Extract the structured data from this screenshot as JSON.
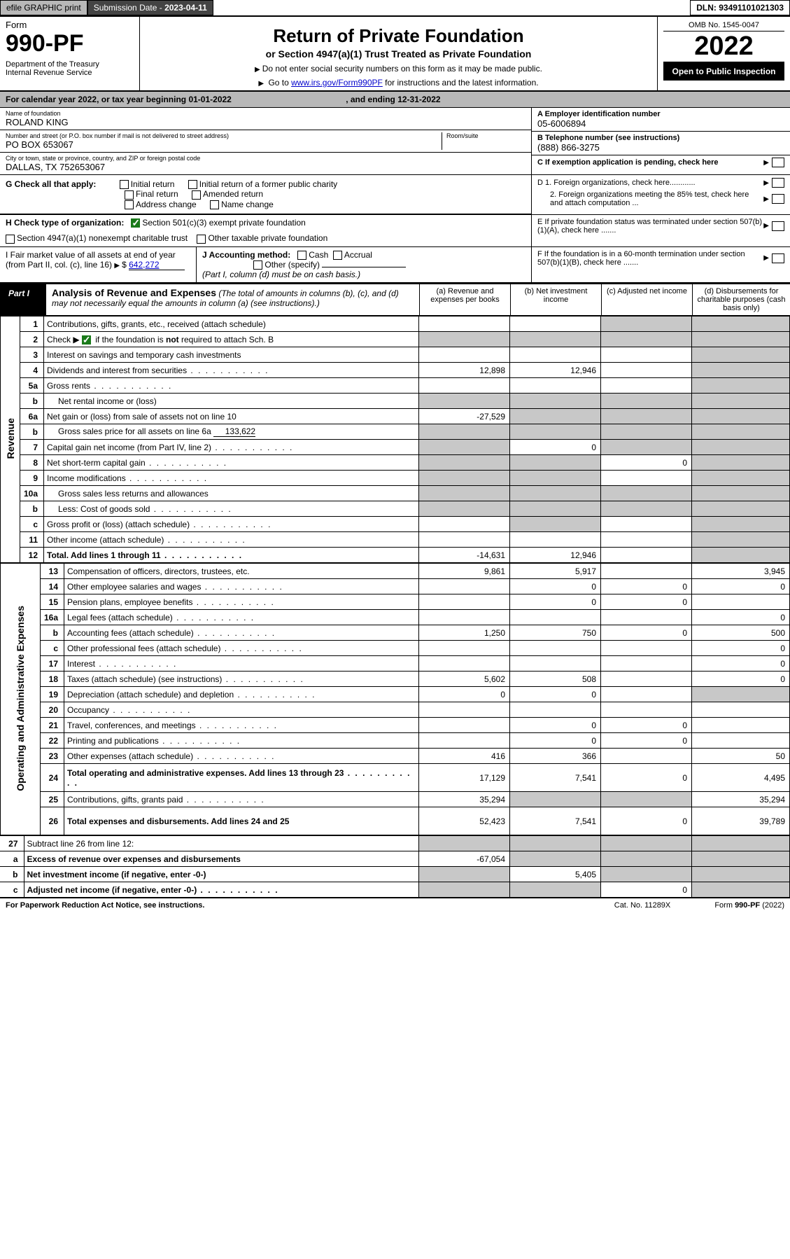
{
  "topbar": {
    "efile": "efile GRAPHIC print",
    "subdate_label": "Submission Date - ",
    "subdate": "2023-04-11",
    "dln_label": "DLN: ",
    "dln": "93491101021303"
  },
  "header": {
    "form_label": "Form",
    "form_no": "990-PF",
    "dept": "Department of the Treasury\nInternal Revenue Service",
    "title": "Return of Private Foundation",
    "subtitle": "or Section 4947(a)(1) Trust Treated as Private Foundation",
    "note1": "Do not enter social security numbers on this form as it may be made public.",
    "note2_pre": "Go to ",
    "note2_link": "www.irs.gov/Form990PF",
    "note2_post": " for instructions and the latest information.",
    "omb": "OMB No. 1545-0047",
    "year": "2022",
    "open": "Open to Public Inspection"
  },
  "calyear": {
    "pre": "For calendar year 2022, or tax year beginning ",
    "begin": "01-01-2022",
    "mid": ", and ending ",
    "end": "12-31-2022"
  },
  "info": {
    "name_lbl": "Name of foundation",
    "name": "ROLAND KING",
    "addr_lbl": "Number and street (or P.O. box number if mail is not delivered to street address)",
    "addr": "PO BOX 653067",
    "room_lbl": "Room/suite",
    "city_lbl": "City or town, state or province, country, and ZIP or foreign postal code",
    "city": "DALLAS, TX  752653067",
    "a_lbl": "A Employer identification number",
    "a_val": "05-6006894",
    "b_lbl": "B Telephone number (see instructions)",
    "b_val": "(888) 866-3275",
    "c_lbl": "C If exemption application is pending, check here",
    "d1": "D 1. Foreign organizations, check here............",
    "d2": "2. Foreign organizations meeting the 85% test, check here and attach computation ...",
    "e_lbl": "E  If private foundation status was terminated under section 507(b)(1)(A), check here .......",
    "f_lbl": "F  If the foundation is in a 60-month termination under section 507(b)(1)(B), check here ......."
  },
  "g": {
    "label": "G Check all that apply:",
    "opts": [
      "Initial return",
      "Initial return of a former public charity",
      "Final return",
      "Amended return",
      "Address change",
      "Name change"
    ]
  },
  "h": {
    "label": "H Check type of organization:",
    "o1": "Section 501(c)(3) exempt private foundation",
    "o2": "Section 4947(a)(1) nonexempt charitable trust",
    "o3": "Other taxable private foundation"
  },
  "i": {
    "label": "I Fair market value of all assets at end of year (from Part II, col. (c), line 16)",
    "val": "642,272"
  },
  "j": {
    "label": "J Accounting method:",
    "o1": "Cash",
    "o2": "Accrual",
    "o3": "Other (specify)",
    "note": "(Part I, column (d) must be on cash basis.)"
  },
  "part1": {
    "label": "Part I",
    "title": "Analysis of Revenue and Expenses",
    "title_note": "(The total of amounts in columns (b), (c), and (d) may not necessarily equal the amounts in column (a) (see instructions).)",
    "cols": {
      "a": "(a)  Revenue and expenses per books",
      "b": "(b)  Net investment income",
      "c": "(c)  Adjusted net income",
      "d": "(d)  Disbursements for charitable purposes (cash basis only)"
    }
  },
  "side": {
    "revenue": "Revenue",
    "expenses": "Operating and Administrative Expenses"
  },
  "rows": [
    {
      "n": "1",
      "d": "Contributions, gifts, grants, etc., received (attach schedule)",
      "a": "",
      "b": "",
      "c": null,
      "dd": null,
      "grey_c": true,
      "grey_d": true
    },
    {
      "n": "2",
      "d": "Check ▶ ☑ if the foundation is not required to attach Sch. B",
      "a": null,
      "b": null,
      "c": null,
      "dd": null,
      "grey_a": true,
      "grey_b": true,
      "grey_c": true,
      "grey_d": true,
      "bold_not": true
    },
    {
      "n": "3",
      "d": "Interest on savings and temporary cash investments",
      "a": "",
      "b": "",
      "c": "",
      "dd": null,
      "grey_d": true
    },
    {
      "n": "4",
      "d": "Dividends and interest from securities",
      "a": "12,898",
      "b": "12,946",
      "c": "",
      "dd": null,
      "grey_d": true,
      "dots": true
    },
    {
      "n": "5a",
      "d": "Gross rents",
      "a": "",
      "b": "",
      "c": "",
      "dd": null,
      "grey_d": true,
      "dots": true
    },
    {
      "n": "b",
      "d": "Net rental income or (loss)",
      "a": null,
      "b": null,
      "c": null,
      "dd": null,
      "grey_a": true,
      "grey_b": true,
      "grey_c": true,
      "grey_d": true,
      "inset": true
    },
    {
      "n": "6a",
      "d": "Net gain or (loss) from sale of assets not on line 10",
      "a": "-27,529",
      "b": null,
      "c": null,
      "dd": null,
      "grey_b": true,
      "grey_c": true,
      "grey_d": true
    },
    {
      "n": "b",
      "d": "Gross sales price for all assets on line 6a",
      "a": null,
      "b": null,
      "c": null,
      "dd": null,
      "grey_a": true,
      "grey_b": true,
      "grey_c": true,
      "grey_d": true,
      "inset": true,
      "inline_val": "133,622"
    },
    {
      "n": "7",
      "d": "Capital gain net income (from Part IV, line 2)",
      "a": null,
      "b": "0",
      "c": null,
      "dd": null,
      "grey_a": true,
      "grey_c": true,
      "grey_d": true,
      "dots": true
    },
    {
      "n": "8",
      "d": "Net short-term capital gain",
      "a": null,
      "b": null,
      "c": "0",
      "dd": null,
      "grey_a": true,
      "grey_b": true,
      "grey_d": true,
      "dots": true
    },
    {
      "n": "9",
      "d": "Income modifications",
      "a": null,
      "b": null,
      "c": "",
      "dd": null,
      "grey_a": true,
      "grey_b": true,
      "grey_d": true,
      "dots": true
    },
    {
      "n": "10a",
      "d": "Gross sales less returns and allowances",
      "a": null,
      "b": null,
      "c": null,
      "dd": null,
      "grey_a": true,
      "grey_b": true,
      "grey_c": true,
      "grey_d": true,
      "inset": true
    },
    {
      "n": "b",
      "d": "Less: Cost of goods sold",
      "a": null,
      "b": null,
      "c": null,
      "dd": null,
      "grey_a": true,
      "grey_b": true,
      "grey_c": true,
      "grey_d": true,
      "inset": true,
      "dots": true
    },
    {
      "n": "c",
      "d": "Gross profit or (loss) (attach schedule)",
      "a": "",
      "b": null,
      "c": "",
      "dd": null,
      "grey_b": true,
      "grey_d": true,
      "dots": true
    },
    {
      "n": "11",
      "d": "Other income (attach schedule)",
      "a": "",
      "b": "",
      "c": "",
      "dd": null,
      "grey_d": true,
      "dots": true
    },
    {
      "n": "12",
      "d": "Total. Add lines 1 through 11",
      "a": "-14,631",
      "b": "12,946",
      "c": "",
      "dd": null,
      "grey_d": true,
      "bold": true,
      "dots": true
    }
  ],
  "exp_rows": [
    {
      "n": "13",
      "d": "Compensation of officers, directors, trustees, etc.",
      "a": "9,861",
      "b": "5,917",
      "c": "",
      "dd": "3,945"
    },
    {
      "n": "14",
      "d": "Other employee salaries and wages",
      "a": "",
      "b": "0",
      "c": "0",
      "dd": "0",
      "dots": true
    },
    {
      "n": "15",
      "d": "Pension plans, employee benefits",
      "a": "",
      "b": "0",
      "c": "0",
      "dd": "",
      "dots": true
    },
    {
      "n": "16a",
      "d": "Legal fees (attach schedule)",
      "a": "",
      "b": "",
      "c": "",
      "dd": "0",
      "dots": true
    },
    {
      "n": "b",
      "d": "Accounting fees (attach schedule)",
      "a": "1,250",
      "b": "750",
      "c": "0",
      "dd": "500",
      "dots": true
    },
    {
      "n": "c",
      "d": "Other professional fees (attach schedule)",
      "a": "",
      "b": "",
      "c": "",
      "dd": "0",
      "dots": true
    },
    {
      "n": "17",
      "d": "Interest",
      "a": "",
      "b": "",
      "c": "",
      "dd": "0",
      "dots": true
    },
    {
      "n": "18",
      "d": "Taxes (attach schedule) (see instructions)",
      "a": "5,602",
      "b": "508",
      "c": "",
      "dd": "0",
      "dots": true
    },
    {
      "n": "19",
      "d": "Depreciation (attach schedule) and depletion",
      "a": "0",
      "b": "0",
      "c": "",
      "dd": null,
      "grey_d": true,
      "dots": true
    },
    {
      "n": "20",
      "d": "Occupancy",
      "a": "",
      "b": "",
      "c": "",
      "dd": "",
      "dots": true
    },
    {
      "n": "21",
      "d": "Travel, conferences, and meetings",
      "a": "",
      "b": "0",
      "c": "0",
      "dd": "",
      "dots": true
    },
    {
      "n": "22",
      "d": "Printing and publications",
      "a": "",
      "b": "0",
      "c": "0",
      "dd": "",
      "dots": true
    },
    {
      "n": "23",
      "d": "Other expenses (attach schedule)",
      "a": "416",
      "b": "366",
      "c": "",
      "dd": "50",
      "dots": true
    },
    {
      "n": "24",
      "d": "Total operating and administrative expenses. Add lines 13 through 23",
      "a": "17,129",
      "b": "7,541",
      "c": "0",
      "dd": "4,495",
      "bold": true,
      "dots": true,
      "twoline": true
    },
    {
      "n": "25",
      "d": "Contributions, gifts, grants paid",
      "a": "35,294",
      "b": null,
      "c": null,
      "dd": "35,294",
      "grey_b": true,
      "grey_c": true,
      "dots": true
    },
    {
      "n": "26",
      "d": "Total expenses and disbursements. Add lines 24 and 25",
      "a": "52,423",
      "b": "7,541",
      "c": "0",
      "dd": "39,789",
      "bold": true,
      "twoline": true
    }
  ],
  "final_rows": [
    {
      "n": "27",
      "d": "Subtract line 26 from line 12:",
      "a": null,
      "b": null,
      "c": null,
      "dd": null,
      "grey_a": true,
      "grey_b": true,
      "grey_c": true,
      "grey_d": true
    },
    {
      "n": "a",
      "d": "Excess of revenue over expenses and disbursements",
      "a": "-67,054",
      "b": null,
      "c": null,
      "dd": null,
      "grey_b": true,
      "grey_c": true,
      "grey_d": true,
      "bold": true
    },
    {
      "n": "b",
      "d": "Net investment income (if negative, enter -0-)",
      "a": null,
      "b": "5,405",
      "c": null,
      "dd": null,
      "grey_a": true,
      "grey_c": true,
      "grey_d": true,
      "bold": true
    },
    {
      "n": "c",
      "d": "Adjusted net income (if negative, enter -0-)",
      "a": null,
      "b": null,
      "c": "0",
      "dd": null,
      "grey_a": true,
      "grey_b": true,
      "grey_d": true,
      "bold": true,
      "dots": true
    }
  ],
  "footer": {
    "left": "For Paperwork Reduction Act Notice, see instructions.",
    "cat": "Cat. No. 11289X",
    "form": "Form 990-PF (2022)"
  },
  "colors": {
    "grey_bg": "#c8c8c8",
    "dark_grey": "#b8b8b8",
    "link": "#0000cc",
    "check_green": "#1a7a1a"
  }
}
